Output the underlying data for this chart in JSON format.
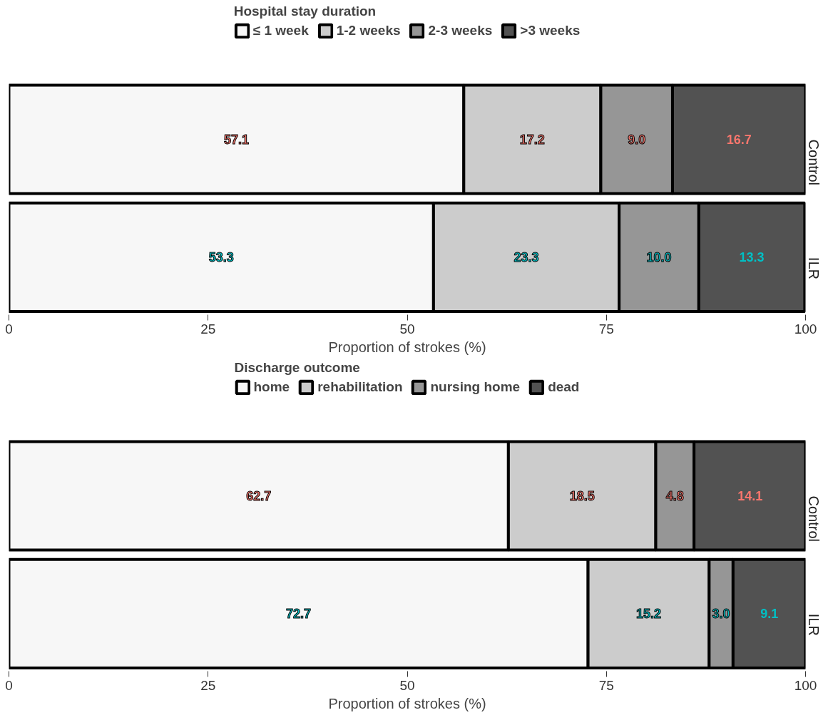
{
  "chart_data": [
    {
      "type": "bar",
      "orientation": "horizontal",
      "stacked": true,
      "legend_title": "Hospital stay duration",
      "xlabel": "Proportion of strokes (%)",
      "categories": [
        "Control",
        "ILR"
      ],
      "xlim": [
        0,
        100
      ],
      "xticks": [
        0,
        25,
        50,
        75,
        100
      ],
      "grid": false,
      "legend": "top",
      "series": [
        {
          "name": "≤ 1 week",
          "color": "#f7f7f7",
          "values": [
            57.1,
            53.3
          ],
          "value_labels": [
            "57.1",
            "53.3"
          ]
        },
        {
          "name": "1-2 weeks",
          "color": "#cccccc",
          "values": [
            17.2,
            23.3
          ],
          "value_labels": [
            "17.2",
            "23.3"
          ]
        },
        {
          "name": "2-3 weeks",
          "color": "#969696",
          "values": [
            9.0,
            10.0
          ],
          "value_labels": [
            "9.0",
            "10.0"
          ]
        },
        {
          "name": ">3 weeks",
          "color": "#525252",
          "values": [
            16.7,
            13.3
          ],
          "value_labels": [
            "16.7",
            "13.3"
          ]
        }
      ]
    },
    {
      "type": "bar",
      "orientation": "horizontal",
      "stacked": true,
      "legend_title": "Discharge outcome",
      "xlabel": "Proportion of strokes (%)",
      "categories": [
        "Control",
        "ILR"
      ],
      "xlim": [
        0,
        100
      ],
      "xticks": [
        0,
        25,
        50,
        75,
        100
      ],
      "grid": false,
      "legend": "top",
      "series": [
        {
          "name": "home",
          "color": "#f7f7f7",
          "values": [
            62.7,
            72.7
          ],
          "value_labels": [
            "62.7",
            "72.7"
          ]
        },
        {
          "name": "rehabilitation",
          "color": "#cccccc",
          "values": [
            18.5,
            15.2
          ],
          "value_labels": [
            "18.5",
            "15.2"
          ]
        },
        {
          "name": "nursing home",
          "color": "#969696",
          "values": [
            4.8,
            3.0
          ],
          "value_labels": [
            "4.8",
            "3.0"
          ]
        },
        {
          "name": "dead",
          "color": "#525252",
          "values": [
            14.1,
            9.1
          ],
          "value_labels": [
            "14.1",
            "9.1"
          ]
        }
      ]
    }
  ]
}
